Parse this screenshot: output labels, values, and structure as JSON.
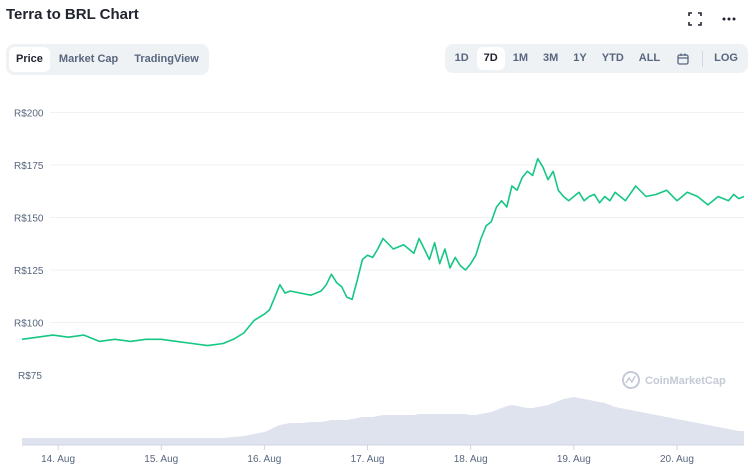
{
  "header": {
    "title": "Terra to BRL Chart",
    "expand_icon": "fullscreen-icon",
    "more_icon": "more-dots-icon"
  },
  "type_tabs": [
    {
      "label": "Price",
      "active": true
    },
    {
      "label": "Market Cap",
      "active": false
    },
    {
      "label": "TradingView",
      "active": false
    }
  ],
  "range_tabs": [
    {
      "label": "1D",
      "active": false
    },
    {
      "label": "7D",
      "active": true
    },
    {
      "label": "1M",
      "active": false
    },
    {
      "label": "3M",
      "active": false
    },
    {
      "label": "1Y",
      "active": false
    },
    {
      "label": "YTD",
      "active": false
    },
    {
      "label": "ALL",
      "active": false
    }
  ],
  "calendar_icon": "calendar-icon",
  "log_label": "LOG",
  "watermark": "CoinMarketCap",
  "colors": {
    "line": "#16c784",
    "volume": "#dfe3ee",
    "grid": "#eff2f5",
    "text": "#58667e"
  },
  "chart_data": {
    "type": "line",
    "y_ticks": [
      "R$200",
      "R$175",
      "R$150",
      "R$125",
      "R$100",
      "R$75"
    ],
    "y_tick_values": [
      200,
      175,
      150,
      125,
      100,
      75
    ],
    "ylim": [
      75,
      205
    ],
    "x_ticks": [
      "14. Aug",
      "15. Aug",
      "16. Aug",
      "17. Aug",
      "18. Aug",
      "19. Aug",
      "20. Aug"
    ],
    "xlim": [
      13.65,
      20.65
    ],
    "x": [
      13.65,
      13.8,
      13.95,
      14.1,
      14.25,
      14.4,
      14.55,
      14.7,
      14.85,
      15.0,
      15.15,
      15.3,
      15.45,
      15.6,
      15.7,
      15.8,
      15.9,
      16.0,
      16.05,
      16.1,
      16.15,
      16.2,
      16.25,
      16.35,
      16.45,
      16.55,
      16.6,
      16.65,
      16.7,
      16.75,
      16.8,
      16.85,
      16.9,
      16.95,
      17.0,
      17.05,
      17.1,
      17.15,
      17.25,
      17.35,
      17.45,
      17.5,
      17.55,
      17.6,
      17.65,
      17.7,
      17.75,
      17.8,
      17.85,
      17.9,
      17.95,
      18.0,
      18.05,
      18.1,
      18.15,
      18.2,
      18.25,
      18.3,
      18.35,
      18.4,
      18.45,
      18.5,
      18.55,
      18.6,
      18.65,
      18.7,
      18.75,
      18.8,
      18.85,
      18.9,
      18.95,
      19.0,
      19.05,
      19.1,
      19.15,
      19.2,
      19.25,
      19.3,
      19.35,
      19.4,
      19.5,
      19.6,
      19.7,
      19.8,
      19.9,
      20.0,
      20.1,
      20.2,
      20.3,
      20.4,
      20.5,
      20.55,
      20.6,
      20.65
    ],
    "values": [
      92,
      93,
      94,
      93,
      94,
      91,
      92,
      91,
      92,
      92,
      91,
      90,
      89,
      90,
      92,
      95,
      101,
      104,
      106,
      112,
      118,
      114,
      115,
      114,
      113,
      115,
      118,
      123,
      119,
      117,
      112,
      111,
      120,
      130,
      132,
      131,
      135,
      140,
      135,
      137,
      133,
      140,
      135,
      130,
      138,
      128,
      135,
      126,
      131,
      127,
      125,
      128,
      132,
      140,
      146,
      148,
      155,
      158,
      155,
      165,
      163,
      169,
      172,
      170,
      178,
      174,
      168,
      172,
      163,
      160,
      158,
      160,
      162,
      158,
      160,
      161,
      157,
      160,
      158,
      162,
      158,
      165,
      160,
      161,
      163,
      158,
      162,
      160,
      156,
      160,
      158,
      161,
      159,
      160
    ],
    "volume": [
      7,
      7,
      7,
      7,
      7,
      7,
      7,
      7,
      7,
      7,
      7,
      7,
      7,
      7,
      8,
      9,
      11,
      13,
      15,
      18,
      20,
      21,
      22,
      22,
      23,
      23,
      24,
      25,
      25,
      25,
      25,
      26,
      27,
      28,
      28,
      28,
      29,
      30,
      30,
      30,
      30,
      31,
      31,
      31,
      31,
      31,
      31,
      31,
      31,
      31,
      31,
      30,
      30,
      31,
      32,
      33,
      35,
      37,
      39,
      40,
      39,
      38,
      37,
      37,
      38,
      39,
      40,
      42,
      44,
      46,
      47,
      48,
      47,
      46,
      45,
      44,
      43,
      42,
      40,
      38,
      36,
      34,
      32,
      30,
      28,
      26,
      24,
      22,
      20,
      18,
      16,
      15,
      14,
      14
    ],
    "grid": true
  }
}
